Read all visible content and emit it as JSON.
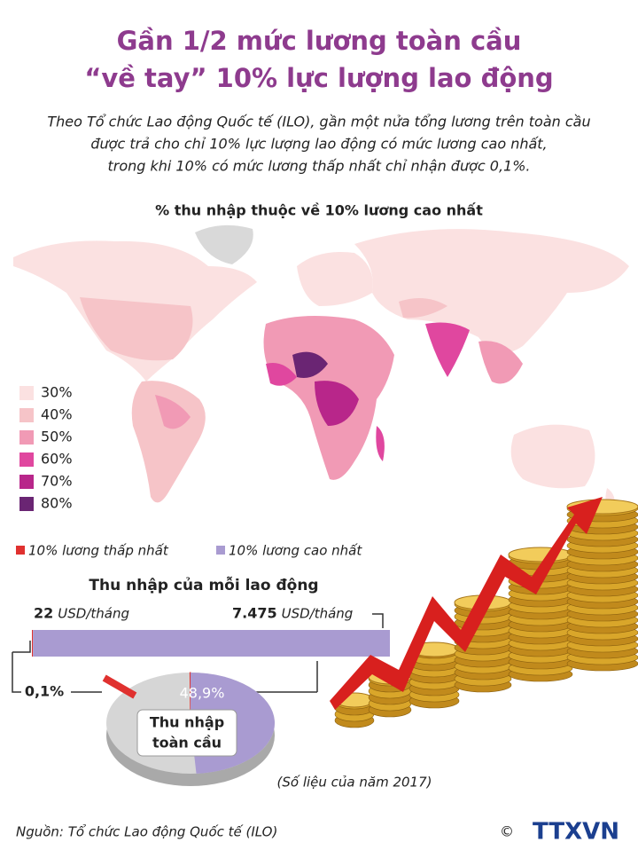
{
  "title": [
    "Gần 1/2 mức lương toàn cầu",
    "“về tay” 10% lực lượng lao động"
  ],
  "intro": [
    "Theo Tổ chức Lao động Quốc tế (ILO), gần một nửa tổng lương trên toàn cầu",
    "được trả cho chỉ 10% lực lượng lao động có mức lương cao nhất,",
    "trong khi 10% có mức lương thấp nhất chỉ nhận được 0,1%."
  ],
  "map": {
    "title": "% thu nhập thuộc về 10% lương cao nhất",
    "legend": [
      {
        "label": "30%",
        "color": "#fbe1e1"
      },
      {
        "label": "40%",
        "color": "#f6c4c8"
      },
      {
        "label": "50%",
        "color": "#f19ab5"
      },
      {
        "label": "60%",
        "color": "#e0479f"
      },
      {
        "label": "70%",
        "color": "#b8268a"
      },
      {
        "label": "80%",
        "color": "#6a2573"
      }
    ]
  },
  "bar": {
    "title": "Thu nhập của mỗi lao động",
    "unit": "USD/tháng",
    "series": [
      {
        "name": "10% lương thấp nhất",
        "color": "#e0312f",
        "value": 22,
        "value_label": "22"
      },
      {
        "name": "10% lương cao nhất",
        "color": "#a99bd1",
        "value": 7475,
        "value_label": "7.475"
      }
    ]
  },
  "pie": {
    "label": [
      "Thu nhập",
      "toàn cầu"
    ],
    "slices": [
      {
        "value": 0.1,
        "value_label": "0,1%",
        "color": "#e0312f"
      },
      {
        "value": 48.9,
        "value_label": "48,9%",
        "color": "#a99bd1"
      }
    ]
  },
  "note": "(Số liệu của năm 2017)",
  "source": "Nguồn: Tổ chức Lao động Quốc tế (ILO)",
  "logo": "TTXVN"
}
